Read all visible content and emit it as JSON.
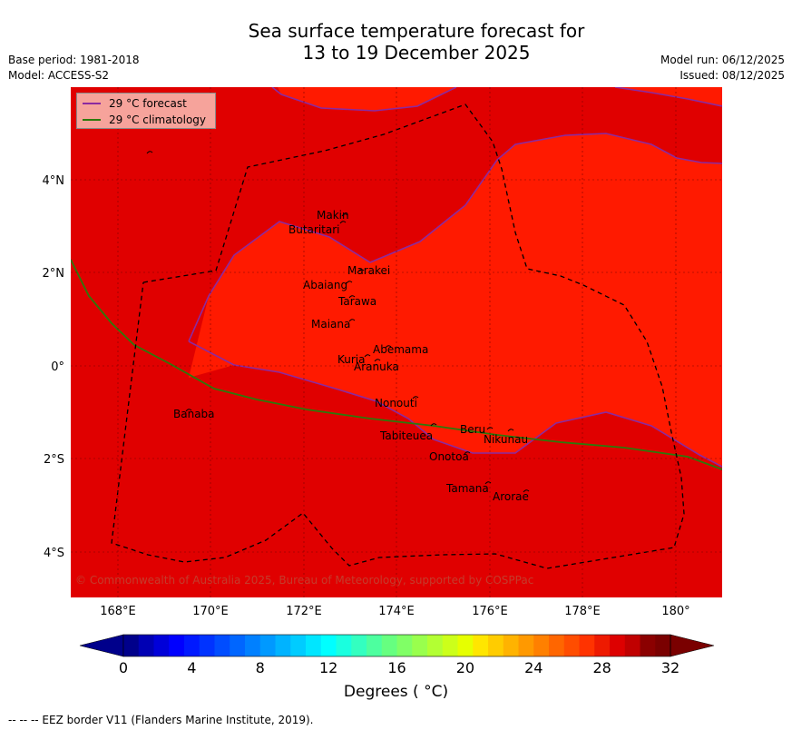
{
  "title_line1": "Sea surface temperature forecast for",
  "title_line2": "13 to 19 December 2025",
  "base_period": "Base period: 1981-2018",
  "model": "Model: ACCESS-S2",
  "model_run": "Model run: 06/12/2025",
  "issued": "Issued: 08/12/2025",
  "legend": {
    "forecast_label": "29 °C  forecast",
    "forecast_color": "#8b2aa0",
    "climatology_label": "29 °C  climatology",
    "climatology_color": "#2b7a0b"
  },
  "lat_ticks": [
    "4°N",
    "2°N",
    "0°",
    "2°S",
    "4°S"
  ],
  "lon_ticks": [
    "168°E",
    "170°E",
    "172°E",
    "174°E",
    "176°E",
    "178°E",
    "180°"
  ],
  "places": [
    "Makin",
    "Butaritari",
    "Marakei",
    "Abaiang",
    "Tarawa",
    "Maiana",
    "Abemama",
    "Kuria",
    "Aranuka",
    "Nonouti",
    "Banaba",
    "Tabiteuea",
    "Beru",
    "Nikunau",
    "Onotoa",
    "Tamana",
    "Arorae"
  ],
  "copyright": "© Commonwealth of Australia 2025, Bureau of Meteorology, supported by COSPPac",
  "colorbar": {
    "ticks": [
      "0",
      "4",
      "8",
      "12",
      "16",
      "20",
      "24",
      "28",
      "32"
    ],
    "units": "Degrees ( °C)",
    "colors": [
      "#00008b",
      "#0000b4",
      "#0000d9",
      "#0000ff",
      "#0019ff",
      "#0033ff",
      "#004dff",
      "#0066ff",
      "#0080ff",
      "#0099ff",
      "#00b3ff",
      "#00ccff",
      "#00e6ff",
      "#00ffff",
      "#1affdf",
      "#33ffc0",
      "#4dff9f",
      "#66ff80",
      "#80ff66",
      "#99ff4d",
      "#b3ff33",
      "#ccff1a",
      "#e6ff00",
      "#ffe600",
      "#ffcc00",
      "#ffb300",
      "#ff9900",
      "#ff8000",
      "#ff6600",
      "#ff4d00",
      "#ff3300",
      "#ee1a00",
      "#dd0000",
      "#c00000",
      "#8b0000",
      "#7a0000"
    ],
    "under_color": "#00008b",
    "over_color": "#7a0000"
  },
  "map_colors": {
    "warm": "#e00000",
    "warmer": "#ff1a00"
  },
  "eez_note": "--  --  -- EEZ border V11 (Flanders Marine Institute, 2019)."
}
